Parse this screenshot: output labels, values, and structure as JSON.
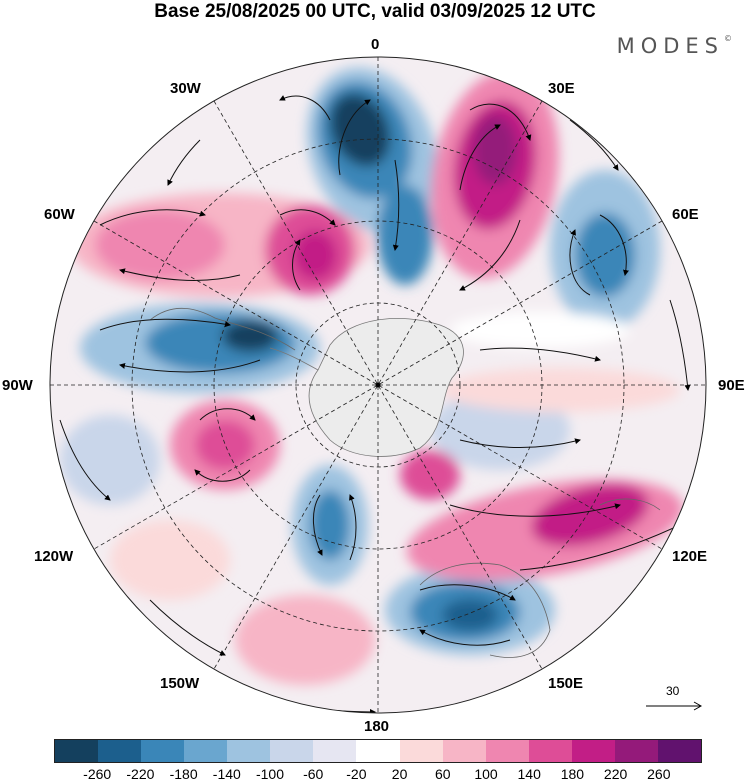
{
  "header": {
    "title": "Base 25/08/2025 00 UTC, valid 03/09/2025 12 UTC",
    "brand": "MODES",
    "brand_mark": "©"
  },
  "map": {
    "projection_label_top": "0",
    "labels": {
      "w30": "30W",
      "e30": "30E",
      "w60": "60W",
      "e60": "60E",
      "w90": "90W",
      "e90": "90E",
      "w120": "120W",
      "e120": "120E",
      "w150": "150W",
      "e150": "150E",
      "s180": "180"
    }
  },
  "vector_legend": {
    "value": "30"
  },
  "colorbar": {
    "colors": [
      "#14405e",
      "#1c5f8d",
      "#3a86b8",
      "#6aa6cf",
      "#9ec3e0",
      "#c9d6ea",
      "#e6e6f2",
      "#ffffff",
      "#fbdada",
      "#f7b5c6",
      "#ef86b0",
      "#de4d97",
      "#c21e86",
      "#941a7a",
      "#61126e"
    ],
    "ticks": [
      "-260",
      "-220",
      "-180",
      "-140",
      "-100",
      "-60",
      "-20",
      "20",
      "60",
      "100",
      "140",
      "180",
      "220",
      "260"
    ]
  }
}
